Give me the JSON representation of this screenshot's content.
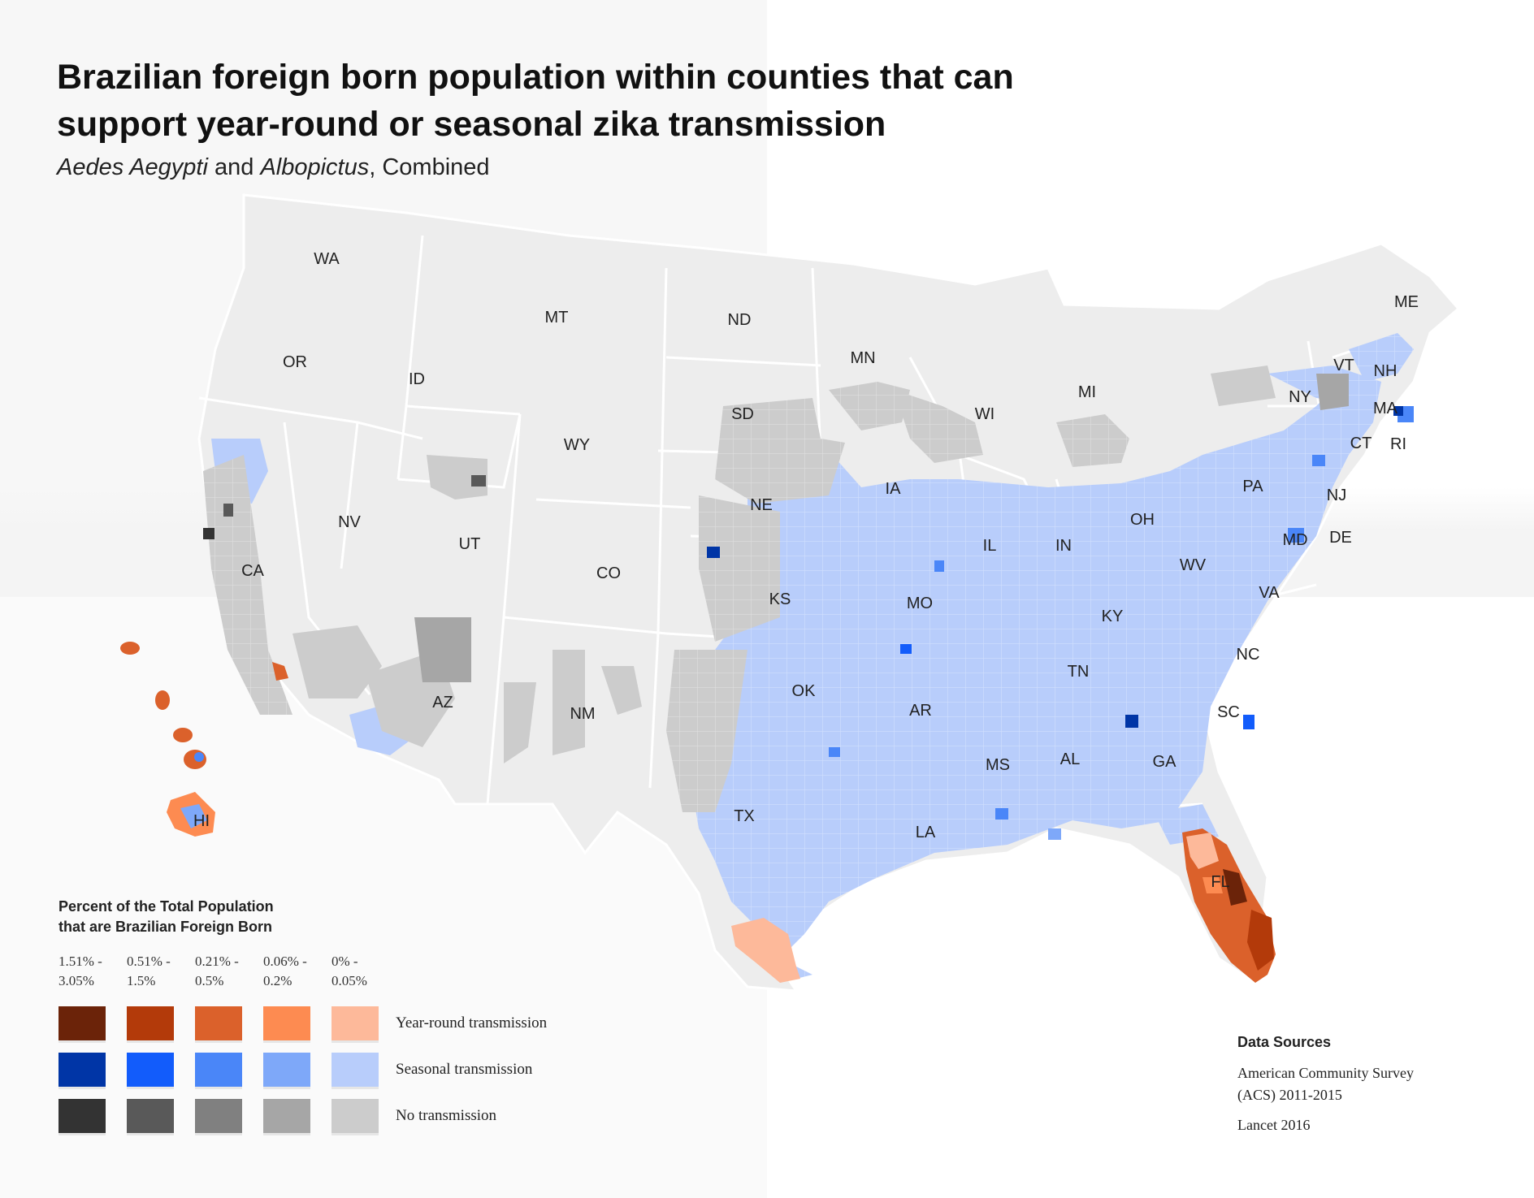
{
  "title": "Brazilian foreign born population within counties that can support year-round or seasonal zika transmission",
  "subtitle": {
    "italic1": "Aedes Aegypti",
    "mid": " and ",
    "italic2": "Albopictus",
    "tail": ", Combined"
  },
  "states": [
    "WA",
    "OR",
    "ID",
    "MT",
    "ND",
    "MN",
    "SD",
    "WY",
    "NV",
    "CA",
    "UT",
    "CO",
    "NE",
    "IA",
    "WI",
    "MI",
    "IL",
    "IN",
    "OH",
    "KS",
    "MO",
    "KY",
    "OK",
    "AR",
    "TN",
    "AZ",
    "NM",
    "TX",
    "LA",
    "MS",
    "AL",
    "GA",
    "SC",
    "NC",
    "VA",
    "WV",
    "PA",
    "NY",
    "VT",
    "NH",
    "ME",
    "MA",
    "CT",
    "RI",
    "NJ",
    "MD",
    "DE",
    "FL",
    "HI"
  ],
  "legend": {
    "title_line1": "Percent of the Total Population",
    "title_line2": "that are Brazilian Foreign Born",
    "ranges": [
      {
        "top": "1.51% -",
        "bottom": "3.05%"
      },
      {
        "top": "0.51% -",
        "bottom": "1.5%"
      },
      {
        "top": "0.21% -",
        "bottom": "0.5%"
      },
      {
        "top": "0.06% -",
        "bottom": "0.2%"
      },
      {
        "top": "0% -",
        "bottom": "0.05%"
      }
    ],
    "rows": [
      {
        "label": "Year-round transmission",
        "colors": [
          "#6b2309",
          "#b33a0a",
          "#db612b",
          "#fd8b51",
          "#fdb99a"
        ]
      },
      {
        "label": "Seasonal transmission",
        "colors": [
          "#0035a6",
          "#125cfb",
          "#4a86f8",
          "#7ea8f9",
          "#b8cdfb"
        ]
      },
      {
        "label": "No transmission",
        "colors": [
          "#333333",
          "#595959",
          "#808080",
          "#a6a6a6",
          "#cccccc"
        ]
      }
    ]
  },
  "sources": {
    "heading": "Data Sources",
    "line1": "American Community Survey",
    "line2": "(ACS) 2011-2015",
    "line3": "Lancet 2016"
  }
}
